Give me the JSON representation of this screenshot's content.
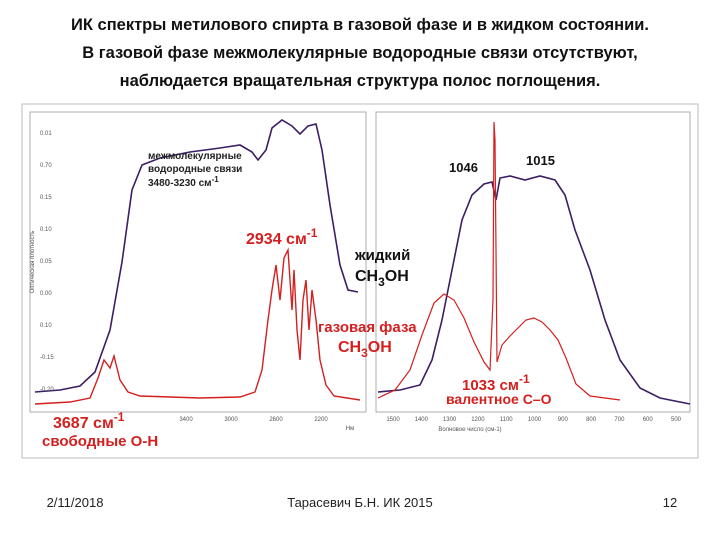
{
  "header": {
    "lines": [
      "ИК спектры метилового спирта в газовой фазе и в жидком состоянии.",
      "В газовой фазе межмолекулярные водородные связи отсутствуют,",
      "наблюдается вращательная структура полос поглощения."
    ]
  },
  "chart": {
    "y_axis_label": "Оптическая плотность",
    "x_axis_label": "Волновое число (см-1)",
    "left_x_unit": "Нм",
    "left_yticks": [
      "0.01",
      "0.70",
      "0.15",
      "0.10",
      "0.05",
      "0.00",
      "0.10",
      "-0.15",
      "-0.20"
    ],
    "left_xticks": [
      "3400",
      "3000",
      "2600",
      "2200"
    ],
    "right_xticks": [
      "1500",
      "1400",
      "1300",
      "1200",
      "1100",
      "1000",
      "900",
      "800",
      "700",
      "600",
      "500"
    ],
    "annotations": {
      "hbond": {
        "lines": [
          "межмолекулярные",
          "водородные связи"
        ],
        "range": {
          "text": "3480-3230 см",
          "sup": "-1"
        }
      },
      "ch_stretch": {
        "text": "2934 см",
        "sup": "-1"
      },
      "liquid": {
        "label": "жидкий",
        "formula": {
          "pre": "CH",
          "sub": "3",
          "post": "OH"
        }
      },
      "gas": {
        "label": "газовая фаза",
        "formula": {
          "pre": "CH",
          "sub": "3",
          "post": "OH"
        }
      },
      "peak_1046": "1046",
      "peak_1015": "1015",
      "co_stretch": {
        "text": "1033 см",
        "sup": "-1",
        "label": "валентное C–O"
      },
      "oh_free": {
        "text": "3687 см",
        "sup": "-1",
        "label": "свободные O-H"
      }
    }
  },
  "footer": {
    "date": "2/11/2018",
    "author": "Тарасевич Б.Н.  ИК 2015",
    "page": "12"
  }
}
